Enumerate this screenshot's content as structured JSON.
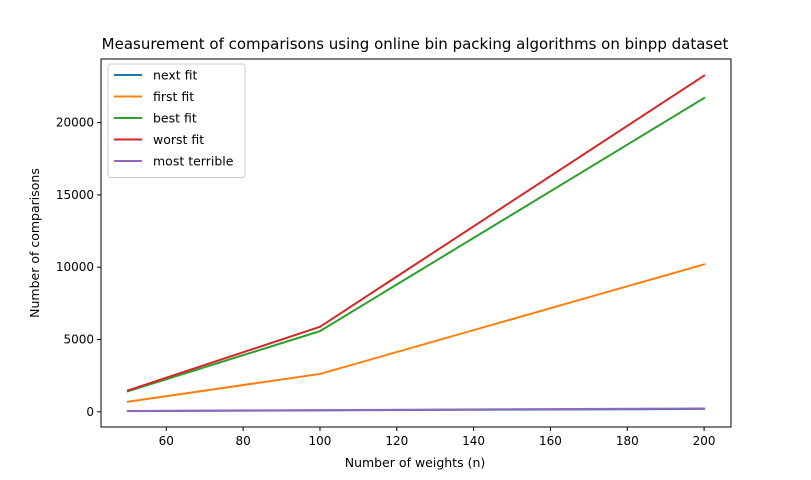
{
  "chart_data": {
    "type": "line",
    "title": "Measurement of comparisons using online bin packing algorithms on binpp dataset",
    "xlabel": "Number of weights (n)",
    "ylabel": "Number of comparisons",
    "x": [
      50,
      100,
      200
    ],
    "xlim": [
      43,
      207
    ],
    "ylim": [
      -1050,
      24400
    ],
    "xticks": [
      60,
      80,
      100,
      120,
      140,
      160,
      180,
      200
    ],
    "yticks": [
      0,
      5000,
      10000,
      15000,
      20000
    ],
    "grid": false,
    "legend_position": "top-left",
    "series": [
      {
        "name": "next fit",
        "color": "#1f77b4",
        "values": [
          49,
          99,
          199
        ]
      },
      {
        "name": "first fit",
        "color": "#ff7f0e",
        "values": [
          700,
          2620,
          10200
        ]
      },
      {
        "name": "best fit",
        "color": "#2ca02c",
        "values": [
          1420,
          5580,
          21700
        ]
      },
      {
        "name": "worst fit",
        "color": "#d62728",
        "values": [
          1480,
          5880,
          23250
        ]
      },
      {
        "name": "most terrible",
        "color": "#9467bd",
        "values": [
          60,
          120,
          230
        ]
      }
    ]
  }
}
